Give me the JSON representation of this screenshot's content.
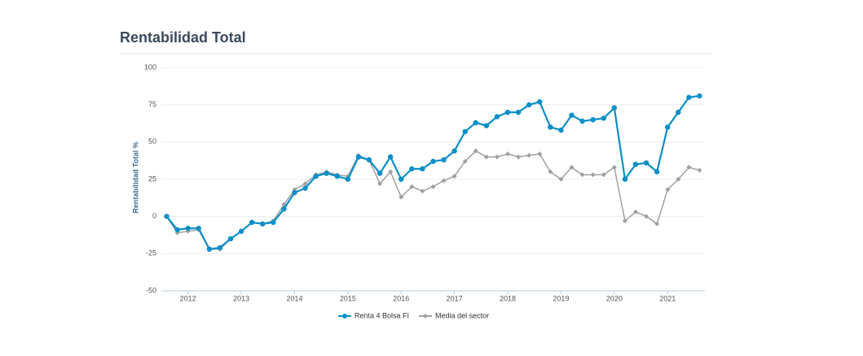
{
  "chart_data": {
    "type": "line",
    "title": "Rentabilidad Total",
    "ylabel": "Rentabilidad Total %",
    "x": [
      2011.6,
      2011.8,
      2012.0,
      2012.2,
      2012.4,
      2012.6,
      2012.8,
      2013.0,
      2013.2,
      2013.4,
      2013.6,
      2013.8,
      2014.0,
      2014.2,
      2014.4,
      2014.6,
      2014.8,
      2015.0,
      2015.2,
      2015.4,
      2015.6,
      2015.8,
      2016.0,
      2016.2,
      2016.4,
      2016.6,
      2016.8,
      2017.0,
      2017.2,
      2017.4,
      2017.6,
      2017.8,
      2018.0,
      2018.2,
      2018.4,
      2018.6,
      2018.8,
      2019.0,
      2019.2,
      2019.4,
      2019.6,
      2019.8,
      2020.0,
      2020.2,
      2020.4,
      2020.6,
      2020.8,
      2021.0,
      2021.2,
      2021.4,
      2021.6
    ],
    "series": [
      {
        "name": "Renta 4 Bolsa FI",
        "color": "#0a8fc7",
        "values": [
          0,
          -9,
          -8,
          -8,
          -22,
          -21,
          -15,
          -10,
          -4,
          -5,
          -4,
          5,
          16,
          19,
          27,
          29,
          27,
          25,
          40,
          38,
          29,
          40,
          25,
          32,
          32,
          37,
          38,
          44,
          57,
          63,
          61,
          67,
          70,
          70,
          75,
          77,
          60,
          58,
          68,
          64,
          65,
          66,
          73,
          25,
          35,
          36,
          30,
          60,
          70,
          80,
          81
        ]
      },
      {
        "name": "Media del sector",
        "color": "#a0a0a0",
        "values": [
          0,
          -11,
          -10,
          -9,
          -22,
          -22,
          -15,
          -10,
          -4,
          -5,
          -3,
          8,
          18,
          22,
          28,
          30,
          28,
          27,
          41,
          38,
          22,
          30,
          13,
          20,
          17,
          20,
          24,
          27,
          37,
          44,
          40,
          40,
          42,
          40,
          41,
          42,
          30,
          25,
          33,
          28,
          28,
          28,
          33,
          -3,
          3,
          0,
          -5,
          18,
          25,
          33,
          31
        ]
      }
    ],
    "xlim": [
      2011.5,
      2021.7
    ],
    "xticks": [
      2012,
      2013,
      2014,
      2015,
      2016,
      2017,
      2018,
      2019,
      2020,
      2021
    ],
    "ylim": [
      -50,
      100
    ],
    "yticks": [
      -50,
      -25,
      0,
      25,
      50,
      75,
      100
    ],
    "grid": true,
    "legend": "bottom"
  }
}
